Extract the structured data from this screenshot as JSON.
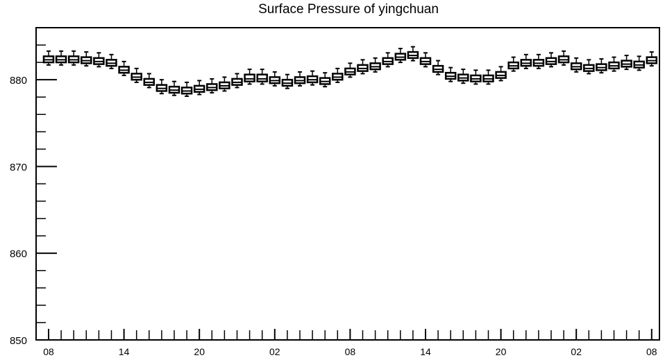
{
  "chart_data": {
    "type": "boxplot",
    "title": "Surface Pressure of yingchuan",
    "xlabel": "",
    "ylabel": "",
    "ylim": [
      850,
      886
    ],
    "y_ticks": [
      "850",
      "860",
      "870",
      "880"
    ],
    "x_tick_labels": [
      "08",
      "14",
      "20",
      "02",
      "08",
      "14",
      "20",
      "02",
      "08"
    ],
    "x_label_steps": [
      0,
      6,
      12,
      18,
      24,
      30,
      36,
      42,
      48
    ],
    "grid": false,
    "box_color": "#000000",
    "boxes": [
      {
        "step": 0,
        "median": 882.3,
        "q1": 882.0,
        "q3": 882.7,
        "lo": 881.7,
        "hi": 883.3
      },
      {
        "step": 1,
        "median": 882.3,
        "q1": 882.0,
        "q3": 882.7,
        "lo": 881.7,
        "hi": 883.3
      },
      {
        "step": 2,
        "median": 882.3,
        "q1": 882.0,
        "q3": 882.7,
        "lo": 881.7,
        "hi": 883.3
      },
      {
        "step": 3,
        "median": 882.2,
        "q1": 881.9,
        "q3": 882.6,
        "lo": 881.6,
        "hi": 883.2
      },
      {
        "step": 4,
        "median": 882.1,
        "q1": 881.8,
        "q3": 882.5,
        "lo": 881.5,
        "hi": 883.1
      },
      {
        "step": 5,
        "median": 881.9,
        "q1": 881.6,
        "q3": 882.3,
        "lo": 881.3,
        "hi": 882.9
      },
      {
        "step": 6,
        "median": 881.1,
        "q1": 880.8,
        "q3": 881.5,
        "lo": 880.5,
        "hi": 882.1
      },
      {
        "step": 7,
        "median": 880.3,
        "q1": 880.0,
        "q3": 880.7,
        "lo": 879.7,
        "hi": 881.3
      },
      {
        "step": 8,
        "median": 879.7,
        "q1": 879.4,
        "q3": 880.1,
        "lo": 879.1,
        "hi": 880.7
      },
      {
        "step": 9,
        "median": 879.0,
        "q1": 878.7,
        "q3": 879.4,
        "lo": 878.4,
        "hi": 880.0
      },
      {
        "step": 10,
        "median": 878.8,
        "q1": 878.5,
        "q3": 879.2,
        "lo": 878.2,
        "hi": 879.8
      },
      {
        "step": 11,
        "median": 878.7,
        "q1": 878.4,
        "q3": 879.1,
        "lo": 878.1,
        "hi": 879.7
      },
      {
        "step": 12,
        "median": 878.9,
        "q1": 878.6,
        "q3": 879.3,
        "lo": 878.3,
        "hi": 879.9
      },
      {
        "step": 13,
        "median": 879.1,
        "q1": 878.8,
        "q3": 879.5,
        "lo": 878.5,
        "hi": 880.1
      },
      {
        "step": 14,
        "median": 879.3,
        "q1": 879.0,
        "q3": 879.7,
        "lo": 878.7,
        "hi": 880.3
      },
      {
        "step": 15,
        "median": 879.7,
        "q1": 879.4,
        "q3": 880.1,
        "lo": 879.1,
        "hi": 880.7
      },
      {
        "step": 16,
        "median": 880.1,
        "q1": 879.8,
        "q3": 880.6,
        "lo": 879.5,
        "hi": 881.2
      },
      {
        "step": 17,
        "median": 880.1,
        "q1": 879.8,
        "q3": 880.6,
        "lo": 879.5,
        "hi": 881.2
      },
      {
        "step": 18,
        "median": 879.9,
        "q1": 879.6,
        "q3": 880.3,
        "lo": 879.3,
        "hi": 880.9
      },
      {
        "step": 19,
        "median": 879.6,
        "q1": 879.3,
        "q3": 880.0,
        "lo": 879.0,
        "hi": 880.6
      },
      {
        "step": 20,
        "median": 879.9,
        "q1": 879.6,
        "q3": 880.3,
        "lo": 879.3,
        "hi": 880.9
      },
      {
        "step": 21,
        "median": 880.0,
        "q1": 879.7,
        "q3": 880.4,
        "lo": 879.4,
        "hi": 881.0
      },
      {
        "step": 22,
        "median": 879.8,
        "q1": 879.5,
        "q3": 880.2,
        "lo": 879.2,
        "hi": 880.8
      },
      {
        "step": 23,
        "median": 880.3,
        "q1": 880.0,
        "q3": 880.7,
        "lo": 879.7,
        "hi": 881.3
      },
      {
        "step": 24,
        "median": 880.9,
        "q1": 880.6,
        "q3": 881.3,
        "lo": 880.3,
        "hi": 881.9
      },
      {
        "step": 25,
        "median": 881.3,
        "q1": 881.0,
        "q3": 881.7,
        "lo": 880.7,
        "hi": 882.3
      },
      {
        "step": 26,
        "median": 881.5,
        "q1": 881.2,
        "q3": 881.9,
        "lo": 880.9,
        "hi": 882.5
      },
      {
        "step": 27,
        "median": 882.1,
        "q1": 881.8,
        "q3": 882.5,
        "lo": 881.5,
        "hi": 883.1
      },
      {
        "step": 28,
        "median": 882.6,
        "q1": 882.3,
        "q3": 883.0,
        "lo": 882.0,
        "hi": 883.6
      },
      {
        "step": 29,
        "median": 882.8,
        "q1": 882.5,
        "q3": 883.2,
        "lo": 882.2,
        "hi": 883.8
      },
      {
        "step": 30,
        "median": 882.1,
        "q1": 881.8,
        "q3": 882.5,
        "lo": 881.5,
        "hi": 883.1
      },
      {
        "step": 31,
        "median": 881.2,
        "q1": 880.9,
        "q3": 881.6,
        "lo": 880.6,
        "hi": 882.2
      },
      {
        "step": 32,
        "median": 880.4,
        "q1": 880.1,
        "q3": 880.8,
        "lo": 879.8,
        "hi": 881.4
      },
      {
        "step": 33,
        "median": 880.2,
        "q1": 879.9,
        "q3": 880.6,
        "lo": 879.6,
        "hi": 881.2
      },
      {
        "step": 34,
        "median": 880.1,
        "q1": 879.8,
        "q3": 880.5,
        "lo": 879.5,
        "hi": 881.1
      },
      {
        "step": 35,
        "median": 880.1,
        "q1": 879.8,
        "q3": 880.5,
        "lo": 879.5,
        "hi": 881.1
      },
      {
        "step": 36,
        "median": 880.5,
        "q1": 880.2,
        "q3": 880.9,
        "lo": 879.9,
        "hi": 881.5
      },
      {
        "step": 37,
        "median": 881.6,
        "q1": 881.3,
        "q3": 882.0,
        "lo": 881.0,
        "hi": 882.6
      },
      {
        "step": 38,
        "median": 881.9,
        "q1": 881.6,
        "q3": 882.3,
        "lo": 881.3,
        "hi": 882.9
      },
      {
        "step": 39,
        "median": 881.9,
        "q1": 881.6,
        "q3": 882.3,
        "lo": 881.3,
        "hi": 882.9
      },
      {
        "step": 40,
        "median": 882.1,
        "q1": 881.8,
        "q3": 882.5,
        "lo": 881.5,
        "hi": 883.1
      },
      {
        "step": 41,
        "median": 882.3,
        "q1": 882.0,
        "q3": 882.7,
        "lo": 881.7,
        "hi": 883.3
      },
      {
        "step": 42,
        "median": 881.5,
        "q1": 881.2,
        "q3": 881.9,
        "lo": 880.9,
        "hi": 882.5
      },
      {
        "step": 43,
        "median": 881.3,
        "q1": 881.0,
        "q3": 881.7,
        "lo": 880.7,
        "hi": 882.3
      },
      {
        "step": 44,
        "median": 881.4,
        "q1": 881.1,
        "q3": 881.8,
        "lo": 880.8,
        "hi": 882.4
      },
      {
        "step": 45,
        "median": 881.6,
        "q1": 881.3,
        "q3": 882.0,
        "lo": 881.0,
        "hi": 882.6
      },
      {
        "step": 46,
        "median": 881.8,
        "q1": 881.5,
        "q3": 882.2,
        "lo": 881.2,
        "hi": 882.8
      },
      {
        "step": 47,
        "median": 881.7,
        "q1": 881.4,
        "q3": 882.1,
        "lo": 881.1,
        "hi": 882.7
      },
      {
        "step": 48,
        "median": 882.2,
        "q1": 881.9,
        "q3": 882.6,
        "lo": 881.6,
        "hi": 883.2
      }
    ]
  }
}
